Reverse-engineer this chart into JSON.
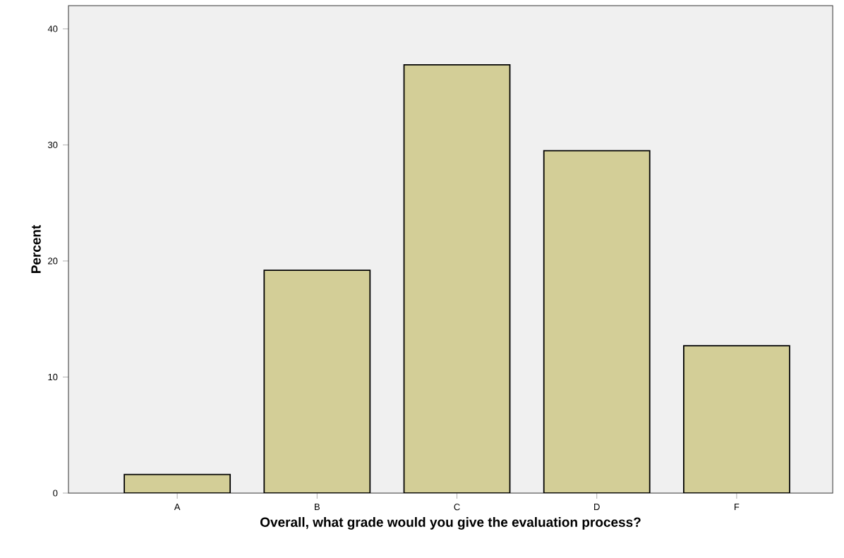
{
  "chart_data": {
    "type": "bar",
    "xlabel": "Overall, what grade would you give the evaluation process?",
    "ylabel": "Percent",
    "categories": [
      "A",
      "B",
      "C",
      "D",
      "F"
    ],
    "values": [
      1.6,
      19.2,
      36.9,
      29.5,
      12.7
    ],
    "color": "#d3ce97",
    "ylim": [
      0,
      42
    ],
    "yticks": [
      0,
      10,
      20,
      30,
      40
    ],
    "grid": false
  }
}
